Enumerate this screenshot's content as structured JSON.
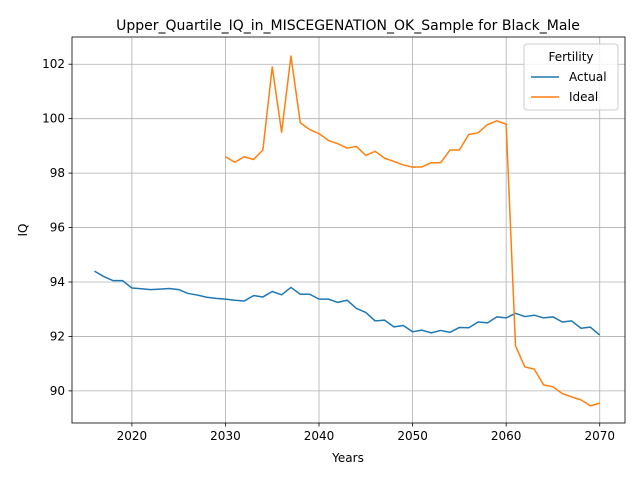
{
  "chart_data": {
    "type": "line",
    "title": "Upper_Quartile_IQ_in_MISCEGENATION_OK_Sample for Black_Male",
    "xlabel": "Years",
    "ylabel": "IQ",
    "xlim": [
      2013.6,
      2072.7
    ],
    "ylim": [
      88.82,
      103.0
    ],
    "xticks": [
      2020,
      2030,
      2040,
      2050,
      2060,
      2070
    ],
    "yticks": [
      90,
      92,
      94,
      96,
      98,
      100,
      102
    ],
    "grid": true,
    "legend": {
      "title": "Fertility",
      "position": "top-right"
    },
    "series": [
      {
        "name": "Actual",
        "color": "#1f77b4",
        "x": [
          2016,
          2017,
          2018,
          2019,
          2020,
          2021,
          2022,
          2023,
          2024,
          2025,
          2026,
          2027,
          2028,
          2029,
          2030,
          2031,
          2032,
          2033,
          2034,
          2035,
          2036,
          2037,
          2038,
          2039,
          2040,
          2041,
          2042,
          2043,
          2044,
          2045,
          2046,
          2047,
          2048,
          2049,
          2050,
          2051,
          2052,
          2053,
          2054,
          2055,
          2056,
          2057,
          2058,
          2059,
          2060,
          2061,
          2062,
          2063,
          2064,
          2065,
          2066,
          2067,
          2068,
          2069,
          2070
        ],
        "values": [
          94.4,
          94.2,
          94.05,
          94.05,
          93.78,
          93.75,
          93.72,
          93.74,
          93.76,
          93.72,
          93.58,
          93.52,
          93.44,
          93.4,
          93.37,
          93.33,
          93.3,
          93.5,
          93.45,
          93.65,
          93.53,
          93.8,
          93.55,
          93.55,
          93.37,
          93.37,
          93.25,
          93.33,
          93.03,
          92.88,
          92.57,
          92.6,
          92.35,
          92.4,
          92.17,
          92.23,
          92.13,
          92.22,
          92.15,
          92.33,
          92.32,
          92.53,
          92.5,
          92.72,
          92.68,
          92.85,
          92.73,
          92.78,
          92.68,
          92.72,
          92.53,
          92.57,
          92.3,
          92.34,
          92.05
        ]
      },
      {
        "name": "Ideal",
        "color": "#ff7f0e",
        "x": [
          2030,
          2031,
          2032,
          2033,
          2034,
          2035,
          2036,
          2037,
          2038,
          2039,
          2040,
          2041,
          2042,
          2043,
          2044,
          2045,
          2046,
          2047,
          2048,
          2049,
          2050,
          2051,
          2052,
          2053,
          2054,
          2055,
          2056,
          2057,
          2058,
          2059,
          2060,
          2061,
          2062,
          2063,
          2064,
          2065,
          2066,
          2067,
          2068,
          2069,
          2070
        ],
        "values": [
          98.6,
          98.4,
          98.6,
          98.5,
          98.85,
          101.9,
          99.5,
          102.3,
          99.85,
          99.6,
          99.45,
          99.2,
          99.08,
          98.92,
          98.98,
          98.65,
          98.8,
          98.55,
          98.43,
          98.3,
          98.22,
          98.23,
          98.38,
          98.38,
          98.85,
          98.85,
          99.42,
          99.48,
          99.78,
          99.92,
          99.8,
          91.65,
          90.88,
          90.8,
          90.22,
          90.15,
          89.9,
          89.78,
          89.67,
          89.45,
          89.55
        ]
      }
    ]
  }
}
